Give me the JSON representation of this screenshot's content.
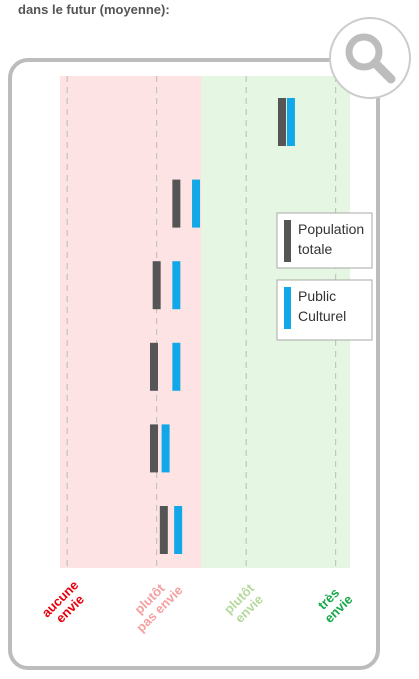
{
  "chart_data": {
    "type": "dot_bar",
    "title": "dans le futur (moyenne):",
    "categories": [
      null,
      null,
      null,
      null,
      null,
      null
    ],
    "series": [
      {
        "name": "Population totale",
        "color": "#555555",
        "values": [
          3.4,
          2.22,
          2.0,
          1.97,
          1.97,
          2.08
        ]
      },
      {
        "name": "Public Culturel",
        "color": "#12a8e8",
        "values": [
          3.5,
          2.44,
          2.22,
          2.22,
          2.1,
          2.24
        ]
      }
    ],
    "xlim": [
      0.92,
      4.16
    ],
    "xticks": [
      {
        "value": 1,
        "label": "aucune\nenvie"
      },
      {
        "value": 2,
        "label": "plutôt\npas envie"
      },
      {
        "value": 3,
        "label": "plutôt\nenvie"
      },
      {
        "value": 4,
        "label": "très\nenvie"
      }
    ],
    "xtick_colors": [
      "#e8000b",
      "#f4a0a0",
      "#b5d99c",
      "#16a84a"
    ],
    "background_colors": [
      "#fde3e3",
      "#e5f6e2"
    ],
    "grid": true
  }
}
